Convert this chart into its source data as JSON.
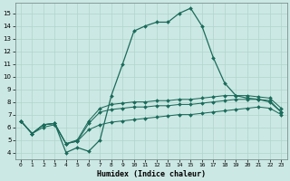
{
  "xlabel": "Humidex (Indice chaleur)",
  "bg_color": "#cce8e4",
  "grid_color": "#b0d4cc",
  "line_color": "#1a6b5a",
  "xlim": [
    -0.5,
    23.5
  ],
  "ylim": [
    3.5,
    15.8
  ],
  "xticks": [
    0,
    1,
    2,
    3,
    4,
    5,
    6,
    7,
    8,
    9,
    10,
    11,
    12,
    13,
    14,
    15,
    16,
    17,
    18,
    19,
    20,
    21,
    22,
    23
  ],
  "yticks": [
    4,
    5,
    6,
    7,
    8,
    9,
    10,
    11,
    12,
    13,
    14,
    15
  ],
  "line_peak_x": [
    0,
    1,
    2,
    3,
    4,
    5,
    6,
    7,
    8,
    9,
    10,
    11,
    12,
    13,
    14,
    15,
    16,
    17,
    18,
    19,
    20,
    21,
    22,
    23
  ],
  "line_peak_y": [
    6.5,
    5.5,
    6.2,
    6.3,
    4.0,
    4.4,
    4.1,
    5.0,
    8.5,
    11.0,
    13.6,
    14.0,
    14.3,
    14.3,
    15.0,
    15.4,
    14.0,
    11.5,
    9.5,
    8.5,
    8.3,
    8.2,
    8.0,
    7.2
  ],
  "line_upper_x": [
    0,
    1,
    2,
    3,
    4,
    5,
    6,
    7,
    8,
    9,
    10,
    11,
    12,
    13,
    14,
    15,
    16,
    17,
    18,
    19,
    20,
    21,
    22,
    23
  ],
  "line_upper_y": [
    6.5,
    5.5,
    6.2,
    6.3,
    4.7,
    5.0,
    6.5,
    7.5,
    7.8,
    7.9,
    8.0,
    8.0,
    8.1,
    8.1,
    8.2,
    8.2,
    8.3,
    8.4,
    8.5,
    8.5,
    8.5,
    8.4,
    8.3,
    7.5
  ],
  "line_mid_x": [
    0,
    1,
    2,
    3,
    4,
    5,
    6,
    7,
    8,
    9,
    10,
    11,
    12,
    13,
    14,
    15,
    16,
    17,
    18,
    19,
    20,
    21,
    22,
    23
  ],
  "line_mid_y": [
    6.5,
    5.5,
    6.2,
    6.3,
    4.7,
    4.9,
    6.3,
    7.2,
    7.4,
    7.5,
    7.6,
    7.6,
    7.7,
    7.7,
    7.8,
    7.8,
    7.9,
    8.0,
    8.1,
    8.2,
    8.2,
    8.2,
    8.1,
    7.2
  ],
  "line_lower_x": [
    0,
    1,
    2,
    3,
    4,
    5,
    6,
    7,
    8,
    9,
    10,
    11,
    12,
    13,
    14,
    15,
    16,
    17,
    18,
    19,
    20,
    21,
    22,
    23
  ],
  "line_lower_y": [
    6.5,
    5.5,
    6.0,
    6.2,
    4.7,
    4.9,
    5.8,
    6.2,
    6.4,
    6.5,
    6.6,
    6.7,
    6.8,
    6.9,
    7.0,
    7.0,
    7.1,
    7.2,
    7.3,
    7.4,
    7.5,
    7.6,
    7.5,
    7.0
  ]
}
